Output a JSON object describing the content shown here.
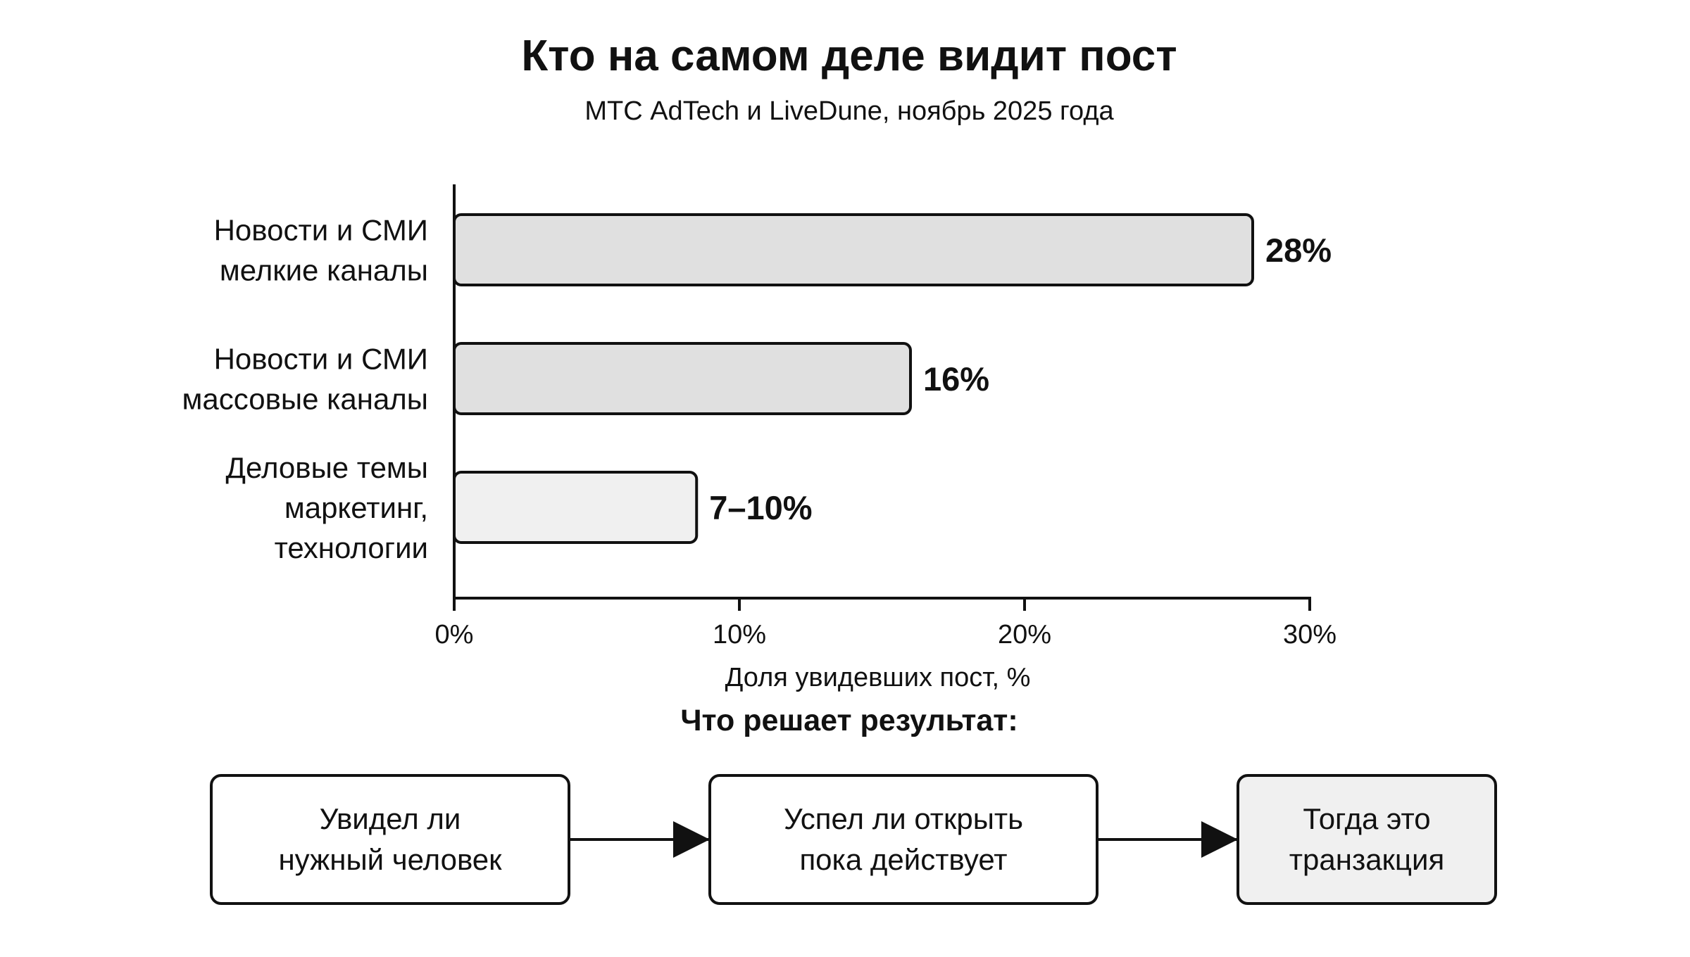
{
  "chart_data": {
    "type": "bar",
    "orientation": "horizontal",
    "title": "Кто на самом деле видит пост",
    "subtitle": "МТС AdTech и LiveDune, ноябрь 2025 года",
    "categories": [
      [
        "Новости и СМИ",
        "мелкие каналы"
      ],
      [
        "Новости и СМИ",
        "массовые каналы"
      ],
      [
        "Деловые темы",
        "маркетинг,",
        "технологии"
      ]
    ],
    "values": [
      28,
      16,
      8.5
    ],
    "value_labels": [
      "28%",
      "16%",
      "7–10%"
    ],
    "bar_colors": [
      "#e0e0e0",
      "#e0e0e0",
      "#f0f0f0"
    ],
    "xlabel": "Доля увидевших пост, %",
    "ylabel": "",
    "xlim": [
      0,
      30
    ],
    "x_ticks": [
      0,
      10,
      20,
      30
    ],
    "x_tick_labels": [
      "0%",
      "10%",
      "20%",
      "30%"
    ],
    "grid": false,
    "legend": "none"
  },
  "flow": {
    "title": "Что решает результат:",
    "steps": [
      {
        "lines": [
          "Увидел ли",
          "нужный человек"
        ],
        "fill": "#ffffff"
      },
      {
        "lines": [
          "Успел ли открыть",
          "пока действует"
        ],
        "fill": "#ffffff"
      },
      {
        "lines": [
          "Тогда это",
          "транзакция"
        ],
        "fill": "#f0f0f0"
      }
    ]
  },
  "colors": {
    "ink": "#111111",
    "background": "#ffffff"
  }
}
